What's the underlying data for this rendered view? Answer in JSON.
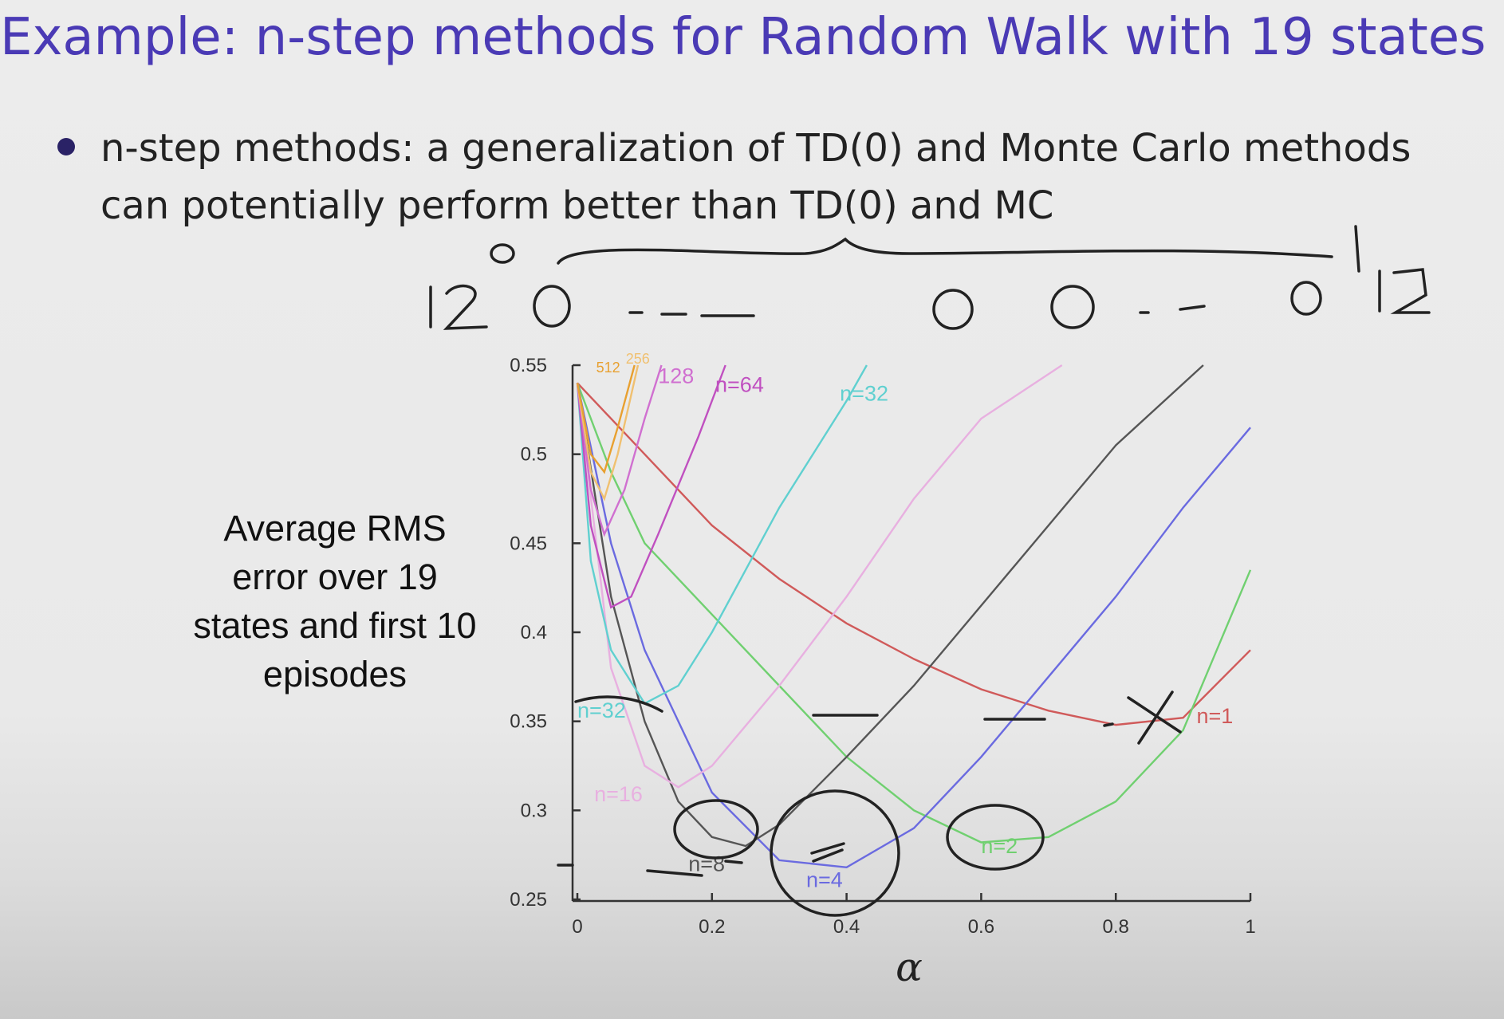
{
  "slide": {
    "title": "Example: n-step methods for Random Walk with 19 states",
    "bullet": "n-step methods: a generalization of TD(0) and Monte Carlo methods can potentially perform better than TD(0) and MC"
  },
  "chart_data": {
    "type": "line",
    "xlabel": "α",
    "ylabel": "Average RMS error over 19 states and first 10 episodes",
    "xlim": [
      0,
      1
    ],
    "ylim": [
      0.25,
      0.55
    ],
    "x_ticks": [
      "0",
      "0.2",
      "0.4",
      "0.6",
      "0.8",
      "1"
    ],
    "y_ticks": [
      "0.25",
      "0.3",
      "0.35",
      "0.4",
      "0.45",
      "0.5",
      "0.55"
    ],
    "grid": false,
    "series": [
      {
        "name": "n=1",
        "color": "#d05a5a",
        "points": [
          [
            0,
            0.54
          ],
          [
            0.1,
            0.5
          ],
          [
            0.2,
            0.46
          ],
          [
            0.3,
            0.43
          ],
          [
            0.4,
            0.405
          ],
          [
            0.5,
            0.385
          ],
          [
            0.6,
            0.368
          ],
          [
            0.7,
            0.356
          ],
          [
            0.8,
            0.348
          ],
          [
            0.9,
            0.352
          ],
          [
            1,
            0.39
          ]
        ]
      },
      {
        "name": "n=2",
        "color": "#70d070",
        "points": [
          [
            0,
            0.54
          ],
          [
            0.05,
            0.49
          ],
          [
            0.1,
            0.45
          ],
          [
            0.2,
            0.41
          ],
          [
            0.3,
            0.37
          ],
          [
            0.4,
            0.33
          ],
          [
            0.5,
            0.3
          ],
          [
            0.6,
            0.282
          ],
          [
            0.7,
            0.285
          ],
          [
            0.8,
            0.305
          ],
          [
            0.9,
            0.345
          ],
          [
            1,
            0.435
          ]
        ]
      },
      {
        "name": "n=4",
        "color": "#6a6ae0",
        "points": [
          [
            0,
            0.54
          ],
          [
            0.05,
            0.45
          ],
          [
            0.1,
            0.39
          ],
          [
            0.2,
            0.31
          ],
          [
            0.3,
            0.272
          ],
          [
            0.4,
            0.268
          ],
          [
            0.5,
            0.29
          ],
          [
            0.6,
            0.33
          ],
          [
            0.7,
            0.375
          ],
          [
            0.8,
            0.42
          ],
          [
            0.9,
            0.47
          ],
          [
            1,
            0.515
          ]
        ]
      },
      {
        "name": "n=8",
        "color": "#555555",
        "points": [
          [
            0,
            0.54
          ],
          [
            0.05,
            0.42
          ],
          [
            0.1,
            0.35
          ],
          [
            0.15,
            0.305
          ],
          [
            0.2,
            0.285
          ],
          [
            0.25,
            0.28
          ],
          [
            0.3,
            0.292
          ],
          [
            0.4,
            0.33
          ],
          [
            0.5,
            0.37
          ],
          [
            0.6,
            0.415
          ],
          [
            0.7,
            0.46
          ],
          [
            0.8,
            0.505
          ],
          [
            0.93,
            0.55
          ]
        ]
      },
      {
        "name": "n=16",
        "color": "#e8b0e0",
        "points": [
          [
            0,
            0.54
          ],
          [
            0.05,
            0.38
          ],
          [
            0.1,
            0.325
          ],
          [
            0.15,
            0.313
          ],
          [
            0.2,
            0.325
          ],
          [
            0.3,
            0.37
          ],
          [
            0.4,
            0.42
          ],
          [
            0.5,
            0.475
          ],
          [
            0.6,
            0.52
          ],
          [
            0.72,
            0.55
          ]
        ]
      },
      {
        "name": "n=32",
        "color": "#60d0d0",
        "points": [
          [
            0,
            0.54
          ],
          [
            0.02,
            0.44
          ],
          [
            0.05,
            0.39
          ],
          [
            0.1,
            0.36
          ],
          [
            0.15,
            0.37
          ],
          [
            0.2,
            0.4
          ],
          [
            0.3,
            0.47
          ],
          [
            0.4,
            0.53
          ],
          [
            0.43,
            0.55
          ]
        ]
      },
      {
        "name": "n=64",
        "color": "#c050c0",
        "points": [
          [
            0,
            0.54
          ],
          [
            0.02,
            0.46
          ],
          [
            0.05,
            0.414
          ],
          [
            0.08,
            0.42
          ],
          [
            0.12,
            0.455
          ],
          [
            0.18,
            0.51
          ],
          [
            0.22,
            0.55
          ]
        ]
      },
      {
        "name": "128",
        "color": "#d070d0",
        "points": [
          [
            0,
            0.54
          ],
          [
            0.02,
            0.48
          ],
          [
            0.04,
            0.455
          ],
          [
            0.07,
            0.48
          ],
          [
            0.1,
            0.52
          ],
          [
            0.125,
            0.55
          ]
        ]
      },
      {
        "name": "256",
        "color": "#f0c070",
        "points": [
          [
            0,
            0.54
          ],
          [
            0.02,
            0.49
          ],
          [
            0.04,
            0.475
          ],
          [
            0.06,
            0.5
          ],
          [
            0.09,
            0.55
          ]
        ]
      },
      {
        "name": "512",
        "color": "#e8a030",
        "points": [
          [
            0,
            0.54
          ],
          [
            0.02,
            0.5
          ],
          [
            0.04,
            0.49
          ],
          [
            0.06,
            0.515
          ],
          [
            0.085,
            0.55
          ]
        ]
      }
    ],
    "series_labels": [
      {
        "text": "n=1",
        "x": 0.92,
        "y": 0.349
      },
      {
        "text": "n=2",
        "x": 0.6,
        "y": 0.276
      },
      {
        "text": "n=4",
        "x": 0.34,
        "y": 0.257
      },
      {
        "text": "n=8",
        "x": 0.165,
        "y": 0.266
      },
      {
        "text": "n=16",
        "x": 0.025,
        "y": 0.305
      },
      {
        "text": "n=32",
        "x": 0.0,
        "y": 0.352
      },
      {
        "text": "n=64",
        "x": 0.205,
        "y": 0.535
      },
      {
        "text": "n=32",
        "x": 0.39,
        "y": 0.53
      },
      {
        "text": "128",
        "x": 0.12,
        "y": 0.54
      },
      {
        "text": "512",
        "x": 0.028,
        "y": 0.546
      },
      {
        "text": "256",
        "x": 0.072,
        "y": 0.551
      }
    ]
  }
}
